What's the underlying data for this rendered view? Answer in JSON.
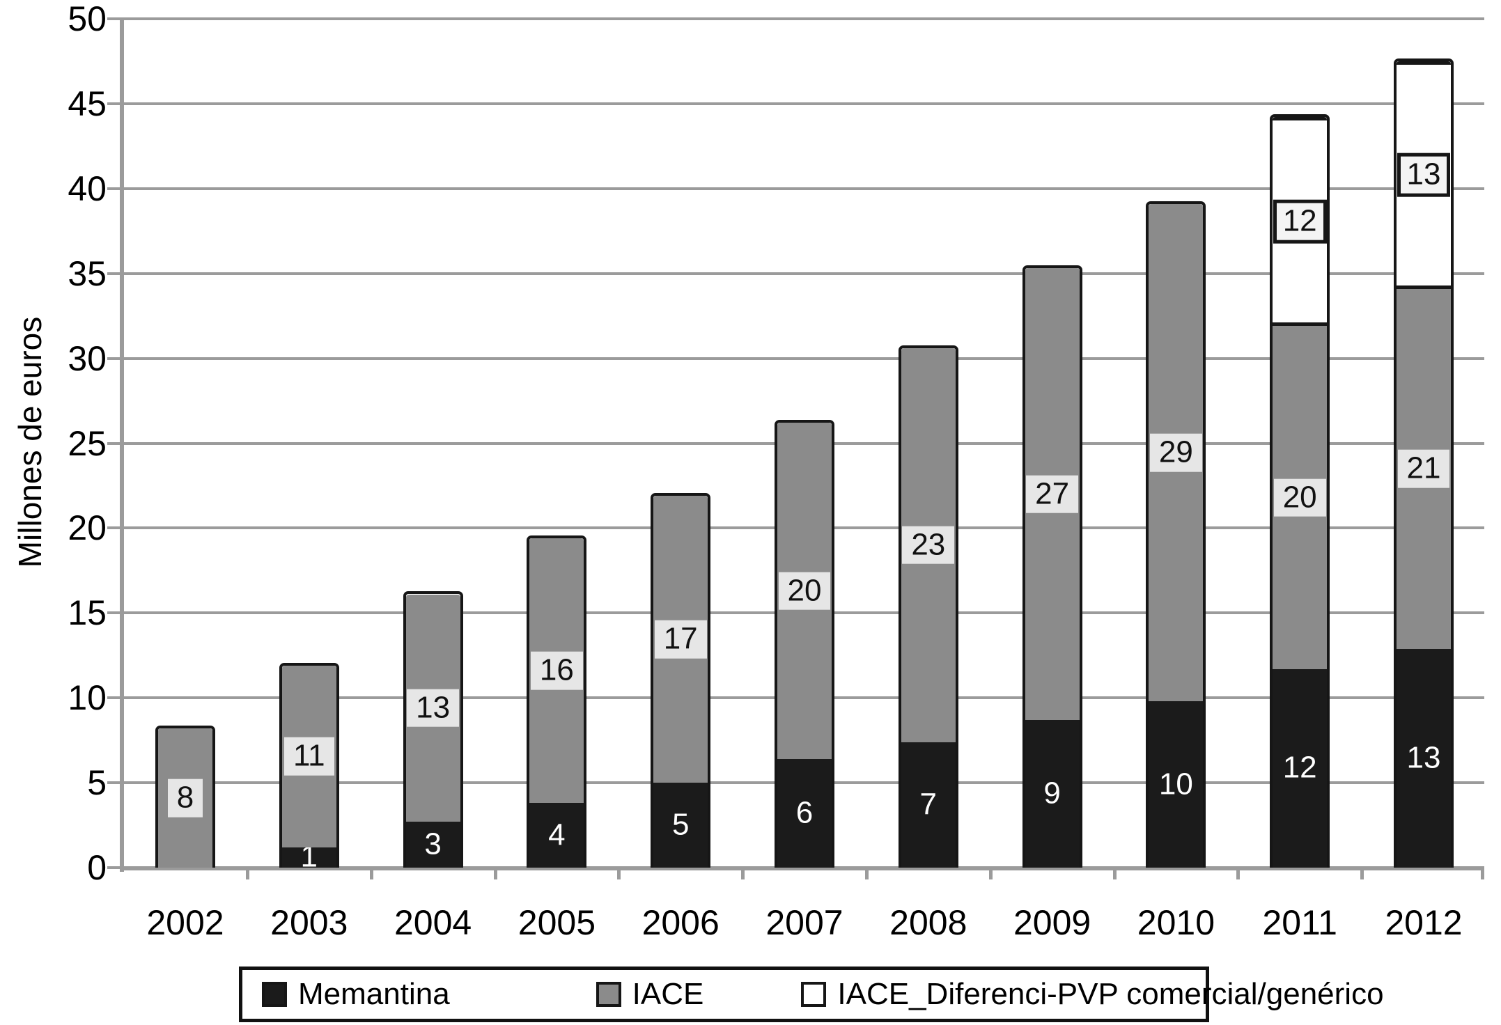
{
  "chart_data": {
    "type": "bar",
    "stacked": true,
    "title": "",
    "xlabel": "",
    "ylabel": "Millones de euros",
    "ylim": [
      0,
      50
    ],
    "ytick_step": 5,
    "yticks": [
      0,
      5,
      10,
      15,
      20,
      25,
      30,
      35,
      40,
      45,
      50
    ],
    "grid": true,
    "legend_position": "bottom",
    "categories": [
      "2002",
      "2003",
      "2004",
      "2005",
      "2006",
      "2007",
      "2008",
      "2009",
      "2010",
      "2011",
      "2012"
    ],
    "series": [
      {
        "name": "Memantina",
        "color": "#1b1b1b",
        "label_style": "plain",
        "values": [
          0,
          1.2,
          2.7,
          3.8,
          5.0,
          6.4,
          7.4,
          8.7,
          9.8,
          11.7,
          12.9
        ],
        "labels": [
          "",
          "1",
          "3",
          "4",
          "5",
          "6",
          "7",
          "9",
          "10",
          "12",
          "13"
        ]
      },
      {
        "name": "IACE",
        "color": "#8b8b8b",
        "label_style": "light-box",
        "values": [
          8.2,
          10.7,
          13.4,
          15.6,
          16.9,
          19.8,
          23.2,
          26.6,
          29.3,
          20.2,
          21.2
        ],
        "labels": [
          "8",
          "11",
          "13",
          "16",
          "17",
          "20",
          "23",
          "27",
          "29",
          "20",
          "21"
        ]
      },
      {
        "name": "IACE_Diferenci-PVP comercial/genérico",
        "color": "#ffffff",
        "label_style": "bordered-box",
        "values": [
          0,
          0,
          0,
          0,
          0,
          0,
          0,
          0,
          0,
          12.3,
          13.4
        ],
        "labels": [
          "",
          "",
          "",
          "",
          "",
          "",
          "",
          "",
          "",
          "12",
          "13"
        ]
      }
    ]
  },
  "colors": {
    "grid": "#9b9b9b",
    "axis": "#9b9b9b",
    "bar_border": "#161616",
    "black_segment": "#1b1b1b",
    "gray_segment": "#8b8b8b",
    "white_segment": "#ffffff",
    "light_label_box": "#e6e6e6",
    "bordered_label_box": "#f4f4f4"
  }
}
